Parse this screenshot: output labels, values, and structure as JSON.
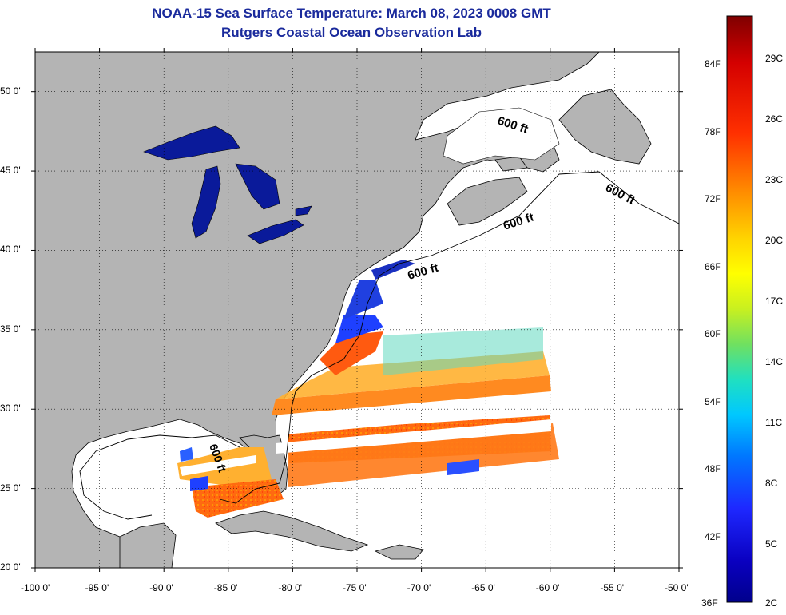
{
  "title": {
    "line1": "NOAA-15 Sea Surface Temperature:  March 08, 2023 0008 GMT",
    "line2": "Rutgers Coastal Ocean Observation Lab"
  },
  "map": {
    "lon_range": [
      -100,
      -50
    ],
    "lat_range": [
      20,
      52.5
    ],
    "lon_ticks": [
      "-100 0'",
      "-95 0'",
      "-90 0'",
      "-85 0'",
      "-80 0'",
      "-75 0'",
      "-70 0'",
      "-65 0'",
      "-60 0'",
      "-55 0'",
      "-50 0'"
    ],
    "lat_ticks": [
      "50 0'",
      "45 0'",
      "40 0'",
      "35 0'",
      "30 0'",
      "25 0'",
      "20 0'"
    ],
    "contour_labels": [
      "600 ft",
      "600 ft",
      "600 ft",
      "600 ft",
      "600 ft"
    ],
    "grid": true,
    "colors": {
      "land": "#b4b4b4",
      "no_data": "#ffffff",
      "lakes": "#0a1a9a"
    }
  },
  "colorbar": {
    "fahrenheit": [
      "84F",
      "78F",
      "72F",
      "66F",
      "60F",
      "54F",
      "48F",
      "42F",
      "36F"
    ],
    "celsius": [
      "29C",
      "26C",
      "23C",
      "20C",
      "17C",
      "14C",
      "11C",
      "8C",
      "5C",
      "2C"
    ],
    "scale_colors": [
      "#7f0000",
      "#d40000",
      "#ff3000",
      "#ff8c00",
      "#ffd400",
      "#ffff00",
      "#c8f020",
      "#70e060",
      "#20e0c0",
      "#00c8ff",
      "#0078ff",
      "#1e28ff",
      "#0a00c0",
      "#00008c"
    ]
  }
}
